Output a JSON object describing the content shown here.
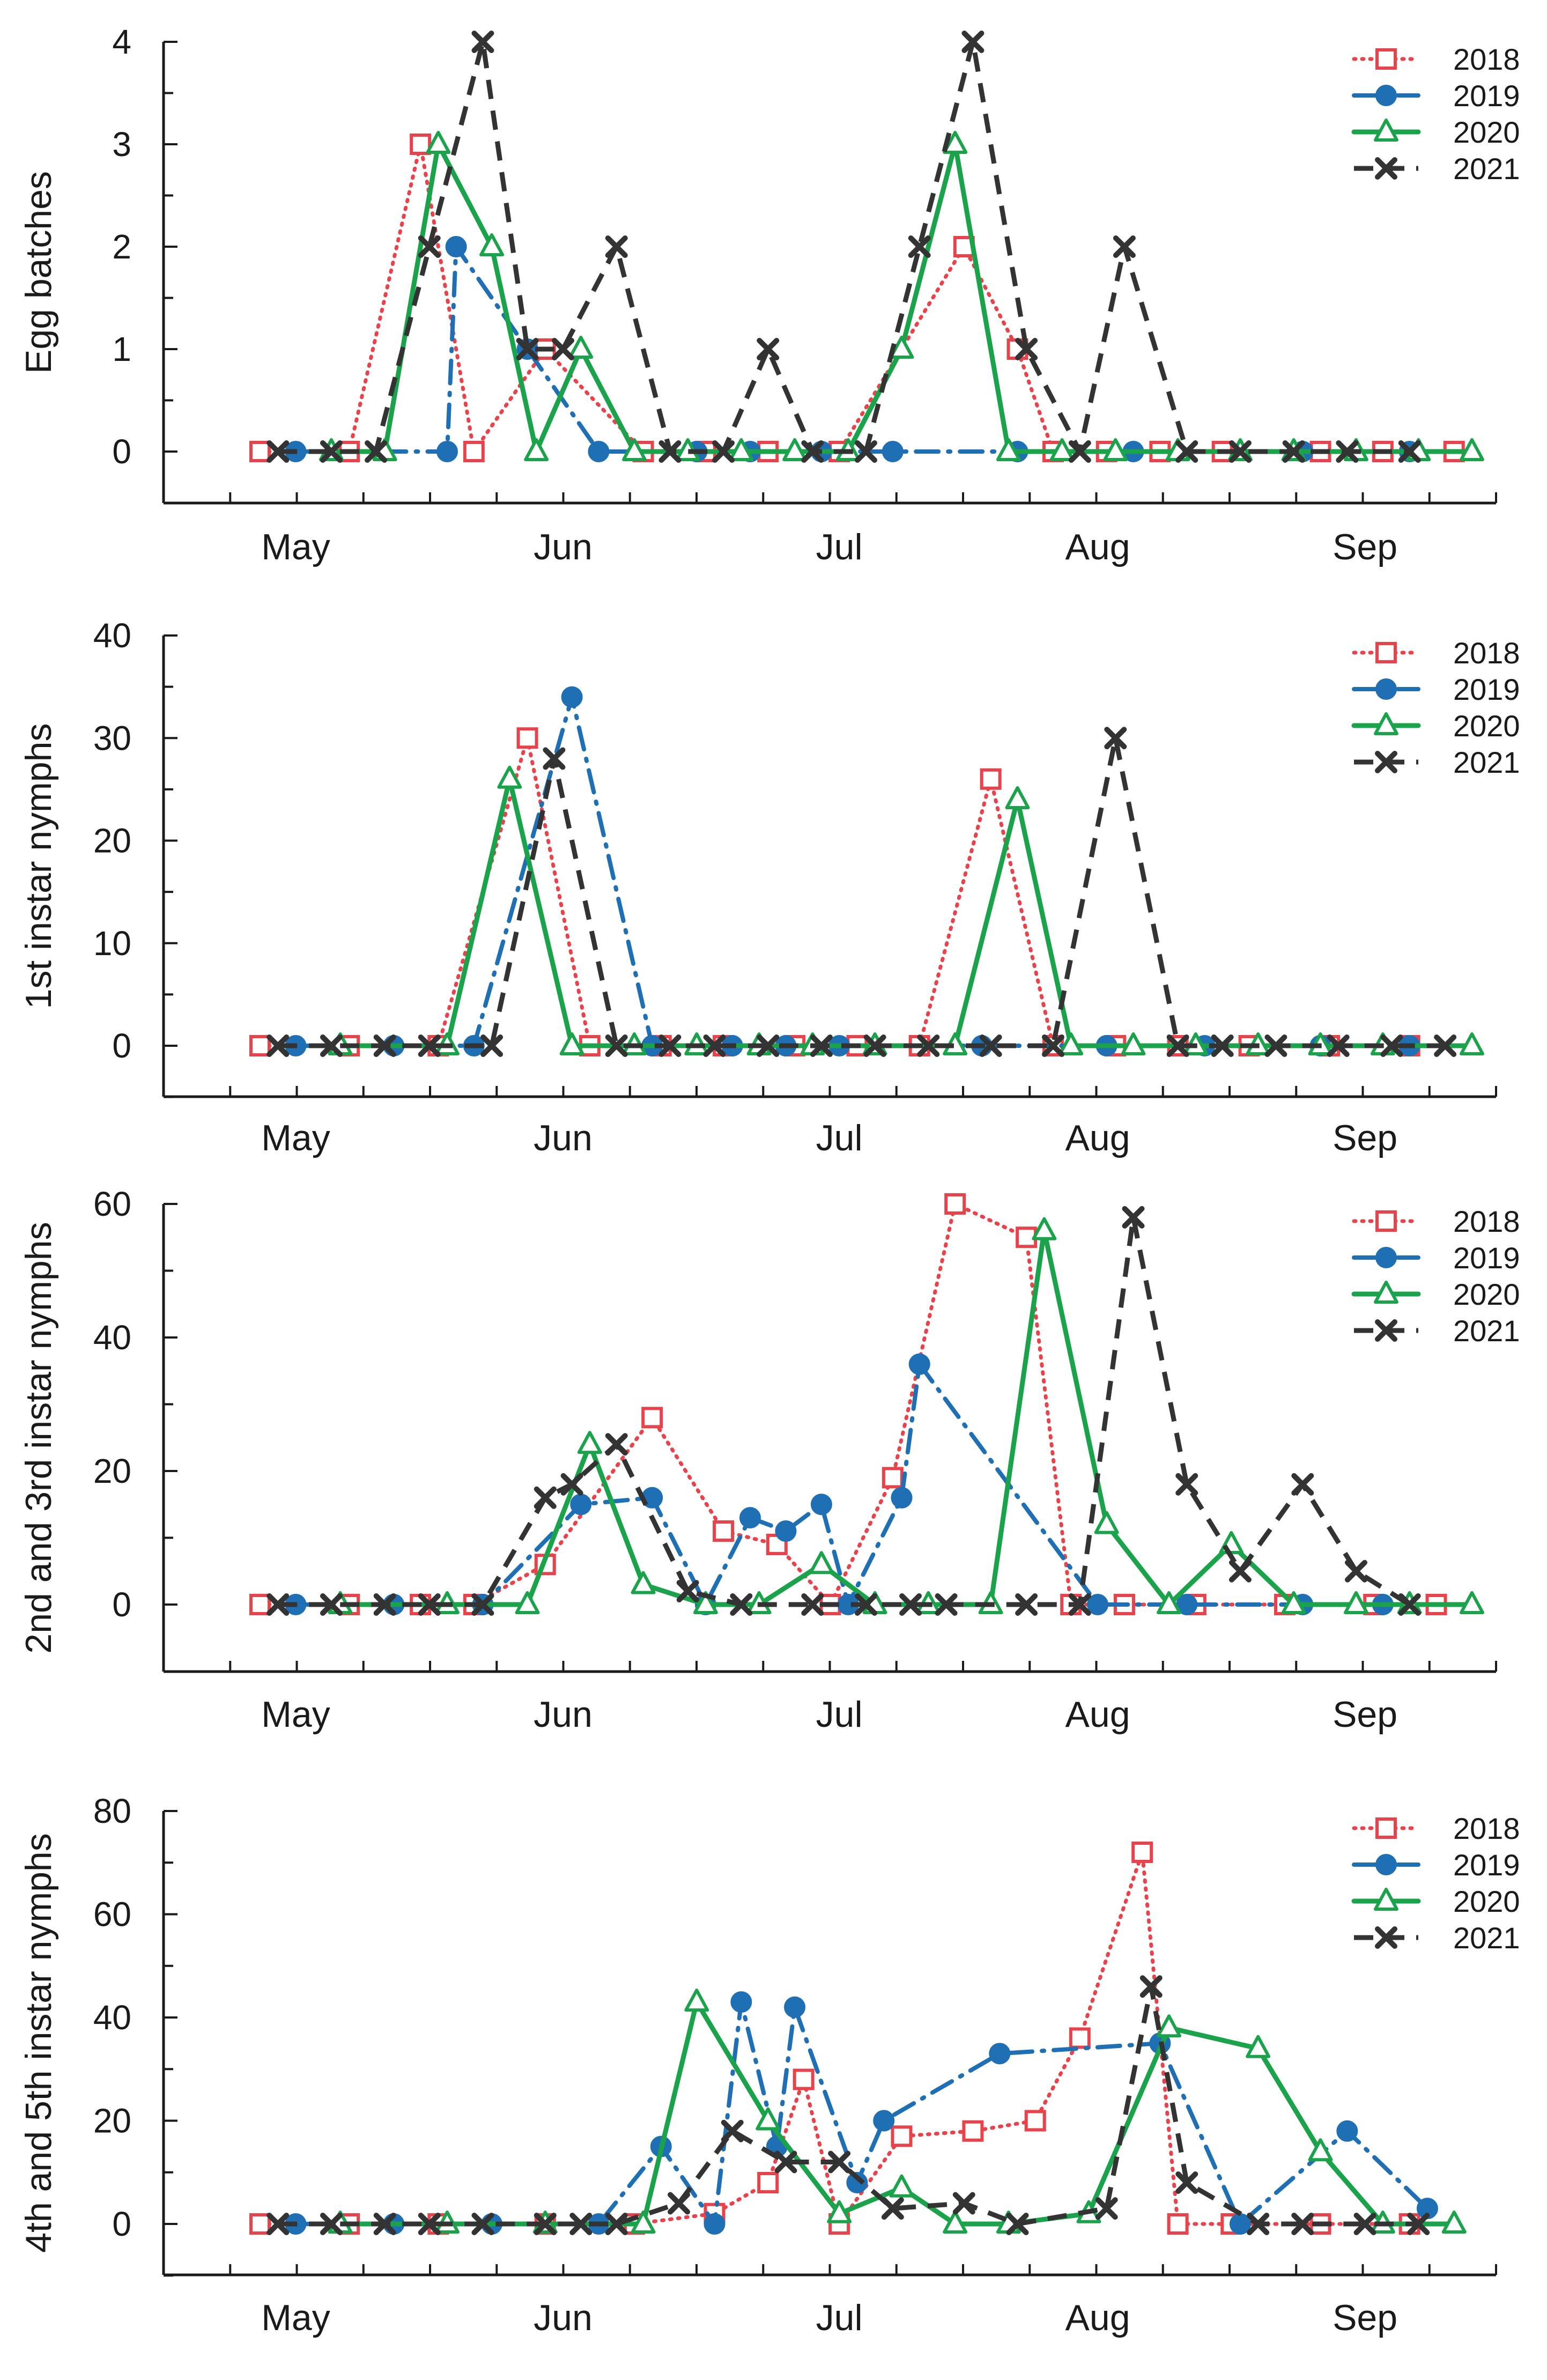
{
  "colors": {
    "2018": "#e8424b",
    "2019": "#1f6fb5",
    "2020": "#1aa34a",
    "2021": "#333333",
    "axis": "#1a1a1a"
  },
  "chart_data": [
    {
      "type": "line",
      "ylabel": "Egg batches",
      "ylim": [
        -0.5,
        4
      ],
      "yticks": [
        0,
        1,
        2,
        3,
        4
      ],
      "months": [
        "May",
        "Jun",
        "Jul",
        "Aug",
        "Sep"
      ],
      "legend": [
        "2018",
        "2019",
        "2020",
        "2021"
      ],
      "series": [
        {
          "name": "2018",
          "x": [
            1,
            11,
            19,
            25,
            33,
            44,
            51,
            58,
            66,
            80,
            86,
            90,
            96,
            102,
            109,
            120,
            127,
            135
          ],
          "y": [
            0,
            0,
            3,
            0,
            1,
            0,
            0,
            0,
            0,
            2,
            1,
            0,
            0,
            0,
            0,
            0,
            0,
            0
          ]
        },
        {
          "name": "2019",
          "x": [
            5,
            22,
            23,
            31,
            39,
            50,
            56,
            64,
            72,
            86,
            99,
            118,
            130
          ],
          "y": [
            0,
            0,
            2,
            1,
            0,
            0,
            0,
            0,
            0,
            0,
            0,
            0,
            0
          ]
        },
        {
          "name": "2020",
          "x": [
            9,
            15,
            21,
            27,
            32,
            37,
            43,
            49,
            55,
            61,
            67,
            73,
            79,
            85,
            91,
            97,
            104,
            111,
            117,
            124,
            131,
            137
          ],
          "y": [
            0,
            0,
            3,
            2,
            0,
            1,
            0,
            0,
            0,
            0,
            0,
            1,
            3,
            0,
            0,
            0,
            0,
            0,
            0,
            0,
            0,
            0
          ]
        },
        {
          "name": "2021",
          "x": [
            3,
            9,
            14,
            20,
            26,
            31,
            35,
            41,
            47,
            53,
            58,
            63,
            69,
            75,
            81,
            87,
            93,
            98,
            105,
            111,
            117,
            123,
            130
          ],
          "y": [
            0,
            0,
            0,
            2,
            4,
            1,
            1,
            2,
            0,
            0,
            1,
            0,
            0,
            2,
            4,
            1,
            0,
            2,
            0,
            0,
            0,
            0,
            0
          ]
        }
      ]
    },
    {
      "type": "line",
      "ylabel": "1st instar nymphs",
      "ylim": [
        -5,
        40
      ],
      "yticks": [
        0,
        10,
        20,
        30,
        40
      ],
      "months": [
        "May",
        "Jun",
        "Jul",
        "Aug",
        "Sep"
      ],
      "legend": [
        "2018",
        "2019",
        "2020",
        "2021"
      ],
      "series": [
        {
          "name": "2018",
          "x": [
            1,
            11,
            21,
            31,
            38,
            46,
            53,
            61,
            68,
            75,
            83,
            90,
            97,
            104,
            112,
            121,
            130
          ],
          "y": [
            0,
            0,
            0,
            30,
            0,
            0,
            0,
            0,
            0,
            0,
            26,
            0,
            0,
            0,
            0,
            0,
            0
          ]
        },
        {
          "name": "2019",
          "x": [
            5,
            16,
            25,
            36,
            45,
            54,
            60,
            66,
            82,
            96,
            107,
            120,
            130
          ],
          "y": [
            0,
            0,
            0,
            34,
            0,
            0,
            0,
            0,
            0,
            0,
            0,
            0,
            0
          ]
        },
        {
          "name": "2020",
          "x": [
            10,
            22,
            29,
            36,
            43,
            50,
            57,
            63,
            70,
            79,
            86,
            92,
            99,
            106,
            113,
            120,
            127,
            137
          ],
          "y": [
            0,
            0,
            26,
            0,
            0,
            0,
            0,
            0,
            0,
            0,
            24,
            0,
            0,
            0,
            0,
            0,
            0,
            0
          ]
        },
        {
          "name": "2021",
          "x": [
            3,
            9,
            15,
            20,
            27,
            34,
            41,
            47,
            52,
            58,
            64,
            70,
            76,
            83,
            90,
            97,
            104,
            109,
            115,
            122,
            128,
            134
          ],
          "y": [
            0,
            0,
            0,
            0,
            0,
            28,
            0,
            0,
            0,
            0,
            0,
            0,
            0,
            0,
            0,
            30,
            0,
            0,
            0,
            0,
            0,
            0
          ]
        }
      ]
    },
    {
      "type": "line",
      "ylabel": "2nd and 3rd instar nymphs",
      "ylim": [
        -10,
        60
      ],
      "yticks": [
        0,
        20,
        40,
        60
      ],
      "months": [
        "May",
        "Jun",
        "Jul",
        "Aug",
        "Sep"
      ],
      "legend": [
        "2018",
        "2019",
        "2020",
        "2021"
      ],
      "series": [
        {
          "name": "2018",
          "x": [
            1,
            11,
            19,
            25,
            33,
            45,
            53,
            59,
            65,
            72,
            79,
            87,
            92,
            98,
            106,
            116,
            126,
            133
          ],
          "y": [
            0,
            0,
            0,
            0,
            6,
            28,
            11,
            9,
            0,
            19,
            60,
            55,
            0,
            0,
            0,
            0,
            0,
            0
          ]
        },
        {
          "name": "2019",
          "x": [
            5,
            16,
            26,
            37,
            45,
            51,
            56,
            60,
            64,
            67,
            73,
            75,
            95,
            105,
            118,
            127
          ],
          "y": [
            0,
            0,
            0,
            15,
            16,
            0,
            13,
            11,
            15,
            0,
            16,
            36,
            0,
            0,
            0,
            0
          ]
        },
        {
          "name": "2020",
          "x": [
            10,
            22,
            31,
            38,
            44,
            51,
            57,
            64,
            70,
            76,
            83,
            89,
            96,
            103,
            110,
            117,
            124,
            130,
            137
          ],
          "y": [
            0,
            0,
            0,
            24,
            3,
            0,
            0,
            6,
            0,
            0,
            0,
            56,
            12,
            0,
            9,
            0,
            0,
            0,
            0
          ]
        },
        {
          "name": "2021",
          "x": [
            3,
            9,
            15,
            20,
            26,
            33,
            36,
            41,
            49,
            55,
            63,
            69,
            74,
            78,
            87,
            93,
            99,
            105,
            111,
            118,
            124,
            130
          ],
          "y": [
            0,
            0,
            0,
            0,
            0,
            16,
            18,
            24,
            2,
            0,
            0,
            0,
            0,
            0,
            0,
            0,
            58,
            18,
            5,
            18,
            5,
            0
          ]
        }
      ]
    },
    {
      "type": "line",
      "ylabel": "4th and 5th instar nymphs",
      "ylim": [
        -10,
        80
      ],
      "yticks": [
        0,
        20,
        40,
        60,
        80
      ],
      "months": [
        "May",
        "Jun",
        "Jul",
        "Aug",
        "Sep"
      ],
      "legend": [
        "2018",
        "2019",
        "2020",
        "2021"
      ],
      "series": [
        {
          "name": "2018",
          "x": [
            1,
            11,
            21,
            33,
            43,
            52,
            58,
            62,
            66,
            73,
            81,
            88,
            93,
            100,
            104,
            110,
            120,
            130
          ],
          "y": [
            0,
            0,
            0,
            0,
            0,
            2,
            8,
            28,
            0,
            17,
            18,
            20,
            36,
            72,
            0,
            0,
            0,
            0
          ]
        },
        {
          "name": "2019",
          "x": [
            5,
            16,
            27,
            39,
            46,
            52,
            55,
            59,
            61,
            68,
            71,
            84,
            102,
            111,
            123,
            132
          ],
          "y": [
            0,
            0,
            0,
            0,
            15,
            0,
            43,
            15,
            42,
            8,
            20,
            33,
            35,
            0,
            18,
            3
          ]
        },
        {
          "name": "2020",
          "x": [
            10,
            22,
            33,
            44,
            50,
            58,
            66,
            73,
            79,
            85,
            94,
            103,
            113,
            120,
            127,
            135
          ],
          "y": [
            0,
            0,
            0,
            0,
            43,
            20,
            2,
            7,
            0,
            0,
            2,
            38,
            34,
            14,
            0,
            0
          ]
        },
        {
          "name": "2021",
          "x": [
            3,
            9,
            15,
            20,
            26,
            33,
            37,
            41,
            48,
            54,
            60,
            66,
            72,
            80,
            86,
            96,
            101,
            105,
            113,
            118,
            125,
            131
          ],
          "y": [
            0,
            0,
            0,
            0,
            0,
            0,
            0,
            0,
            4,
            18,
            12,
            12,
            3,
            4,
            0,
            3,
            46,
            8,
            0,
            0,
            0,
            0
          ]
        }
      ]
    }
  ]
}
